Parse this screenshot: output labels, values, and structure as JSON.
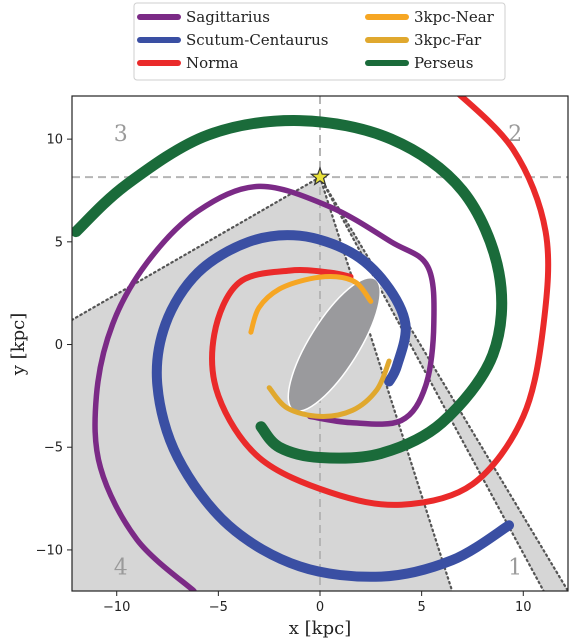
{
  "chart_data": {
    "type": "line",
    "xlabel": "x [kpc]",
    "ylabel": "y [kpc]",
    "xlim": [
      -12.2,
      12.2
    ],
    "ylim": [
      -12,
      12.1
    ],
    "xticks": [
      -10,
      -5,
      0,
      5,
      10
    ],
    "yticks": [
      -10,
      -5,
      0,
      5,
      10
    ],
    "xtick_labels": [
      "−10",
      "−5",
      "0",
      "5",
      "10"
    ],
    "ytick_labels": [
      "−10",
      "−5",
      "0",
      "5",
      "10"
    ],
    "grid": false,
    "legend_position": "top-center",
    "legend": [
      {
        "name": "Sagittarius",
        "color": "#7b2a86"
      },
      {
        "name": "3kpc-Near",
        "color": "#f6a623"
      },
      {
        "name": "Scutum-Centaurus",
        "color": "#3a4fa3"
      },
      {
        "name": "3kpc-Far",
        "color": "#e0a82e"
      },
      {
        "name": "Norma",
        "color": "#ea2a2a"
      },
      {
        "name": "Perseus",
        "color": "#1a6b3a"
      }
    ],
    "sun": {
      "x": 0,
      "y": 8.15
    },
    "galactic_center": {
      "x": 0,
      "y": 0
    },
    "quadrant_labels": [
      {
        "text": "1",
        "x": 9.6,
        "y": -10.8
      },
      {
        "text": "2",
        "x": 9.6,
        "y": 10.3
      },
      {
        "text": "3",
        "x": -9.8,
        "y": 10.3
      },
      {
        "text": "4",
        "x": -9.8,
        "y": -10.8
      }
    ],
    "bar": {
      "cx": 0.7,
      "cy": 0.0,
      "semi_major": 3.8,
      "semi_minor": 1.2,
      "angle_deg": 58,
      "color": "#9a9a9d"
    },
    "shaded_wedges": [
      {
        "apex": [
          0,
          8.15
        ],
        "points": [
          [
            -12.2,
            1.2
          ],
          [
            -12.2,
            -12
          ],
          [
            6.5,
            -12
          ]
        ],
        "color": "#d6d6d6"
      },
      {
        "apex": [
          0,
          8.15
        ],
        "points": [
          [
            11.0,
            -12
          ],
          [
            12.2,
            -12
          ]
        ],
        "color": "#d6d6d6"
      }
    ],
    "dotted_lines": [
      {
        "from": [
          0,
          8.15
        ],
        "to": [
          -12.2,
          1.2
        ]
      },
      {
        "from": [
          0,
          8.15
        ],
        "to": [
          6.5,
          -12
        ]
      },
      {
        "from": [
          0,
          8.15
        ],
        "to": [
          11.0,
          -12
        ]
      },
      {
        "from": [
          0,
          8.15
        ],
        "to": [
          12.2,
          -12
        ]
      }
    ],
    "reference_lines": {
      "x": 0,
      "y": 8.15
    },
    "series": [
      {
        "name": "Sagittarius",
        "color": "#7b2a86",
        "width": 5.5,
        "points": [
          [
            -6.2,
            -12
          ],
          [
            -9.0,
            -9.5
          ],
          [
            -10.8,
            -6.0
          ],
          [
            -11.0,
            -2.5
          ],
          [
            -10.2,
            1.0
          ],
          [
            -8.5,
            4.0
          ],
          [
            -6.0,
            6.5
          ],
          [
            -3.0,
            7.7
          ],
          [
            0.5,
            6.7
          ],
          [
            3.5,
            5.0
          ],
          [
            5.3,
            3.8
          ],
          [
            5.6,
            1.0
          ],
          [
            5.2,
            -2.0
          ],
          [
            4.0,
            -3.7
          ],
          [
            1.5,
            -3.8
          ],
          [
            -0.5,
            -3.5
          ]
        ]
      },
      {
        "name": "Scutum-Centaurus",
        "color": "#3a4fa3",
        "width": 10,
        "points": [
          [
            9.3,
            -8.8
          ],
          [
            6.5,
            -10.5
          ],
          [
            3.0,
            -11.3
          ],
          [
            -1.0,
            -10.8
          ],
          [
            -4.5,
            -8.8
          ],
          [
            -7.0,
            -5.5
          ],
          [
            -8.0,
            -2.0
          ],
          [
            -7.6,
            1.0
          ],
          [
            -6.0,
            3.5
          ],
          [
            -3.5,
            5.0
          ],
          [
            -1.0,
            5.3
          ],
          [
            1.5,
            4.5
          ],
          [
            3.2,
            3.0
          ],
          [
            4.2,
            1.0
          ],
          [
            3.8,
            -1.0
          ],
          [
            3.4,
            -1.8
          ]
        ]
      },
      {
        "name": "Norma",
        "color": "#ea2a2a",
        "width": 6,
        "points": [
          [
            6.5,
            12.5
          ],
          [
            9.5,
            9.5
          ],
          [
            11.1,
            5.5
          ],
          [
            11.0,
            1.0
          ],
          [
            10.0,
            -3.5
          ],
          [
            7.5,
            -6.8
          ],
          [
            4.0,
            -7.8
          ],
          [
            0.5,
            -7.2
          ],
          [
            -3.0,
            -5.5
          ],
          [
            -5.0,
            -2.5
          ],
          [
            -5.2,
            0.5
          ],
          [
            -4.0,
            3.0
          ],
          [
            -1.5,
            3.6
          ],
          [
            0.5,
            3.5
          ],
          [
            1.5,
            3.3
          ]
        ]
      },
      {
        "name": "3kpc-Near",
        "color": "#f6a623",
        "width": 5,
        "points": [
          [
            -3.4,
            0.6
          ],
          [
            -3.0,
            1.8
          ],
          [
            -2.0,
            2.7
          ],
          [
            -0.5,
            3.2
          ],
          [
            0.8,
            3.3
          ],
          [
            1.8,
            3.0
          ],
          [
            2.5,
            2.1
          ]
        ]
      },
      {
        "name": "3kpc-Far",
        "color": "#e0a82e",
        "width": 5,
        "points": [
          [
            -2.5,
            -2.1
          ],
          [
            -1.6,
            -3.1
          ],
          [
            0.0,
            -3.5
          ],
          [
            1.6,
            -3.2
          ],
          [
            2.8,
            -2.2
          ],
          [
            3.4,
            -0.8
          ]
        ]
      },
      {
        "name": "Perseus",
        "color": "#1a6b3a",
        "width": 11,
        "points": [
          [
            -2.9,
            -4.0
          ],
          [
            -2.0,
            -5.0
          ],
          [
            0.0,
            -5.5
          ],
          [
            3.0,
            -5.3
          ],
          [
            6.0,
            -3.8
          ],
          [
            8.5,
            -0.5
          ],
          [
            8.8,
            3.5
          ],
          [
            7.0,
            7.5
          ],
          [
            3.5,
            10.0
          ],
          [
            -1.0,
            10.9
          ],
          [
            -5.5,
            10.2
          ],
          [
            -9.5,
            7.8
          ],
          [
            -12.0,
            5.5
          ]
        ]
      }
    ]
  }
}
